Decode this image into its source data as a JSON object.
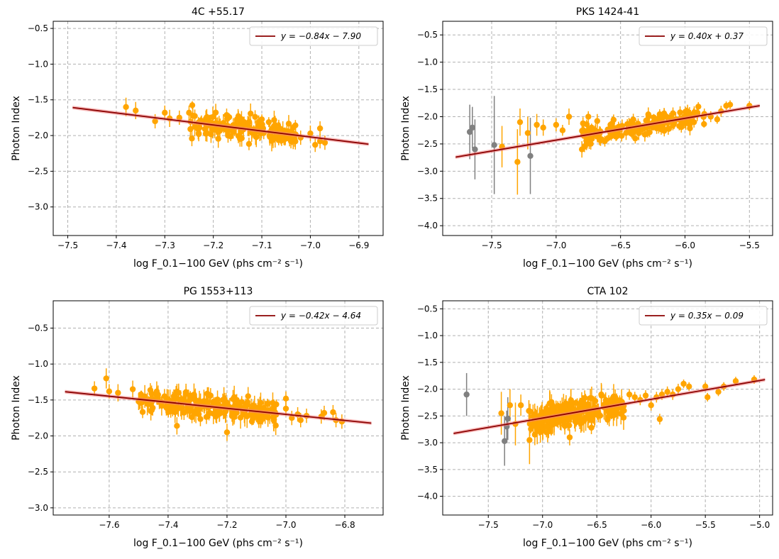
{
  "chart_data": [
    {
      "type": "scatter",
      "title": "4C +55.17",
      "xlabel": "log F_0.1−100 GeV (phs cm⁻² s⁻¹)",
      "ylabel": "Photon Index",
      "xlim": [
        -7.53,
        -6.85
      ],
      "ylim": [
        -3.4,
        -0.4
      ],
      "xticks": [
        "−7.5",
        "−7.4",
        "−7.3",
        "−7.2",
        "−7.1",
        "−7.0",
        "−6.9"
      ],
      "xtick_values": [
        -7.5,
        -7.4,
        -7.3,
        -7.2,
        -7.1,
        -7.0,
        -6.9
      ],
      "yticks": [
        "−3.0",
        "−2.5",
        "−2.0",
        "−1.5",
        "−1.0",
        "−0.5"
      ],
      "ytick_values": [
        -3.0,
        -2.5,
        -2.0,
        -1.5,
        -1.0,
        -0.5
      ],
      "grid": true,
      "legend": {
        "position": "top-right",
        "label": "y = −0.84x − 7.90"
      },
      "fit": {
        "slope": -0.84,
        "intercept": -7.9,
        "x_range": [
          -7.49,
          -6.88
        ]
      },
      "cloud": {
        "x_range": [
          -7.26,
          -7.03
        ],
        "count": 150,
        "band": 0.12,
        "err": [
          0.05,
          0.15
        ],
        "seed": 11
      },
      "series": [
        {
          "name": "data",
          "color": "#FFA500",
          "points": [
            [
              -7.38,
              -1.6,
              0.13
            ],
            [
              -7.36,
              -1.65,
              0.12
            ],
            [
              -7.32,
              -1.8,
              0.1
            ],
            [
              -7.3,
              -1.68,
              0.1
            ],
            [
              -7.29,
              -1.76,
              0.12
            ],
            [
              -7.27,
              -1.75,
              0.1
            ],
            [
              -7.25,
              -1.68,
              0.1
            ],
            [
              -7.23,
              -1.98,
              0.1
            ],
            [
              -7.02,
              -2.03,
              0.1
            ],
            [
              -7.0,
              -1.97,
              0.11
            ],
            [
              -6.98,
              -2.08,
              0.1
            ],
            [
              -6.98,
              -1.9,
              0.1
            ],
            [
              -6.97,
              -2.1,
              0.1
            ],
            [
              -6.99,
              -2.13,
              0.1
            ],
            [
              -7.04,
              -2.08,
              0.1
            ]
          ]
        }
      ]
    },
    {
      "type": "scatter",
      "title": "PKS 1424-41",
      "xlabel": "log F_0.1−100 GeV (phs cm⁻² s⁻¹)",
      "ylabel": "Photon Index",
      "xlim": [
        -7.88,
        -5.32
      ],
      "ylim": [
        -4.18,
        -0.25
      ],
      "xticks": [
        "−7.5",
        "−7.0",
        "−6.5",
        "−6.0",
        "−5.5"
      ],
      "xtick_values": [
        -7.5,
        -7.0,
        -6.5,
        -6.0,
        -5.5
      ],
      "yticks": [
        "−4.0",
        "−3.5",
        "−3.0",
        "−2.5",
        "−2.0",
        "−1.5",
        "−1.0",
        "−0.5"
      ],
      "ytick_values": [
        -4.0,
        -3.5,
        -3.0,
        -2.5,
        -2.0,
        -1.5,
        -1.0,
        -0.5
      ],
      "grid": true,
      "legend": {
        "position": "top-right",
        "label": "y = 0.40x + 0.37"
      },
      "fit": {
        "slope": 0.4,
        "intercept": 0.37,
        "x_range": [
          -7.78,
          -5.42
        ]
      },
      "cloud": {
        "x_range": [
          -6.8,
          -5.85
        ],
        "count": 170,
        "band": 0.14,
        "err": [
          0.05,
          0.13
        ],
        "seed": 23
      },
      "series": [
        {
          "name": "data",
          "color": "#FFA500",
          "points": [
            [
              -7.42,
              -2.55,
              0.38
            ],
            [
              -7.3,
              -2.83,
              0.6
            ],
            [
              -7.28,
              -2.1,
              0.25
            ],
            [
              -7.22,
              -2.3,
              0.3
            ],
            [
              -7.15,
              -2.15,
              0.2
            ],
            [
              -7.1,
              -2.2,
              0.15
            ],
            [
              -7.0,
              -2.15,
              0.12
            ],
            [
              -6.95,
              -2.25,
              0.1
            ],
            [
              -6.9,
              -2.0,
              0.15
            ],
            [
              -6.8,
              -2.6,
              0.15
            ],
            [
              -6.78,
              -2.55,
              0.1
            ],
            [
              -6.75,
              -2.0,
              0.1
            ],
            [
              -6.72,
              -2.3,
              0.1
            ],
            [
              -5.98,
              -2.05,
              0.1
            ],
            [
              -5.93,
              -2.1,
              0.1
            ],
            [
              -5.85,
              -1.95,
              0.1
            ],
            [
              -5.8,
              -2.0,
              0.1
            ],
            [
              -5.75,
              -2.05,
              0.08
            ],
            [
              -5.72,
              -1.9,
              0.1
            ],
            [
              -5.68,
              -1.8,
              0.08
            ],
            [
              -5.65,
              -1.78,
              0.08
            ],
            [
              -5.5,
              -1.8,
              0.08
            ]
          ]
        },
        {
          "name": "low",
          "color": "#808080",
          "points": [
            [
              -7.67,
              -2.28,
              0.5
            ],
            [
              -7.65,
              -2.2,
              0.38
            ],
            [
              -7.63,
              -2.6,
              0.55
            ],
            [
              -7.48,
              -2.52,
              0.9
            ],
            [
              -7.2,
              -2.72,
              0.7
            ]
          ]
        }
      ]
    },
    {
      "type": "scatter",
      "title": "PG 1553+113",
      "xlabel": "log F_0.1−100 GeV (phs cm⁻² s⁻¹)",
      "ylabel": "Photon Index",
      "xlim": [
        -7.79,
        -6.67
      ],
      "ylim": [
        -3.1,
        -0.12
      ],
      "xticks": [
        "−7.6",
        "−7.4",
        "−7.2",
        "−7.0",
        "−6.8"
      ],
      "xtick_values": [
        -7.6,
        -7.4,
        -7.2,
        -7.0,
        -6.8
      ],
      "yticks": [
        "−3.0",
        "−2.5",
        "−2.0",
        "−1.5",
        "−1.0",
        "−0.5"
      ],
      "ytick_values": [
        -3.0,
        -2.5,
        -2.0,
        -1.5,
        -1.0,
        -0.5
      ],
      "grid": true,
      "legend": {
        "position": "top-right",
        "label": "y = −0.42x − 4.64"
      },
      "fit": {
        "slope": -0.42,
        "intercept": -4.64,
        "x_range": [
          -7.75,
          -6.71
        ]
      },
      "cloud": {
        "x_range": [
          -7.5,
          -7.03
        ],
        "count": 220,
        "band": 0.11,
        "err": [
          0.05,
          0.17
        ],
        "seed": 37
      },
      "series": [
        {
          "name": "data",
          "color": "#FFA500",
          "points": [
            [
              -7.65,
              -1.34,
              0.1
            ],
            [
              -7.61,
              -1.2,
              0.14
            ],
            [
              -7.6,
              -1.38,
              0.1
            ],
            [
              -7.57,
              -1.4,
              0.12
            ],
            [
              -7.52,
              -1.35,
              0.12
            ],
            [
              -7.5,
              -1.52,
              0.12
            ],
            [
              -7.37,
              -1.86,
              0.12
            ],
            [
              -7.2,
              -1.95,
              0.12
            ],
            [
              -7.0,
              -1.48,
              0.1
            ],
            [
              -7.0,
              -1.62,
              0.1
            ],
            [
              -6.98,
              -1.75,
              0.1
            ],
            [
              -6.96,
              -1.7,
              0.1
            ],
            [
              -6.95,
              -1.78,
              0.1
            ],
            [
              -6.93,
              -1.72,
              0.1
            ],
            [
              -6.88,
              -1.73,
              0.1
            ],
            [
              -6.87,
              -1.68,
              0.1
            ],
            [
              -6.84,
              -1.67,
              0.1
            ],
            [
              -6.83,
              -1.78,
              0.1
            ],
            [
              -6.81,
              -1.8,
              0.1
            ]
          ]
        }
      ]
    },
    {
      "type": "scatter",
      "title": "CTA 102",
      "xlabel": "log F_0.1−100 GeV (phs cm⁻² s⁻¹)",
      "ylabel": "Photon Index",
      "xlim": [
        -7.92,
        -4.88
      ],
      "ylim": [
        -4.35,
        -0.35
      ],
      "xticks": [
        "−7.5",
        "−7.0",
        "−6.5",
        "−6.0",
        "−5.5",
        "−5.0"
      ],
      "xtick_values": [
        -7.5,
        -7.0,
        -6.5,
        -6.0,
        -5.5,
        -5.0
      ],
      "yticks": [
        "−4.0",
        "−3.5",
        "−3.0",
        "−2.5",
        "−2.0",
        "−1.5",
        "−1.0",
        "−0.5"
      ],
      "ytick_values": [
        -4.0,
        -3.5,
        -3.0,
        -2.5,
        -2.0,
        -1.5,
        -1.0,
        -0.5
      ],
      "grid": true,
      "legend": {
        "position": "top-right",
        "label": "y = 0.35x − 0.09"
      },
      "fit": {
        "slope": 0.35,
        "intercept": -0.09,
        "x_range": [
          -7.82,
          -4.95
        ]
      },
      "cloud": {
        "x_range": [
          -7.15,
          -6.25
        ],
        "count": 220,
        "band": 0.17,
        "err": [
          0.06,
          0.25
        ],
        "seed": 53
      },
      "series": [
        {
          "name": "data",
          "color": "#FFA500",
          "points": [
            [
              -7.38,
              -2.45,
              0.4
            ],
            [
              -7.3,
              -2.3,
              0.3
            ],
            [
              -7.25,
              -2.65,
              0.4
            ],
            [
              -7.2,
              -2.3,
              0.2
            ],
            [
              -7.12,
              -2.95,
              0.45
            ],
            [
              -7.02,
              -2.8,
              0.2
            ],
            [
              -6.75,
              -2.9,
              0.15
            ],
            [
              -6.55,
              -2.72,
              0.12
            ],
            [
              -6.2,
              -2.1,
              0.1
            ],
            [
              -6.15,
              -2.15,
              0.1
            ],
            [
              -6.1,
              -2.2,
              0.1
            ],
            [
              -6.05,
              -2.12,
              0.1
            ],
            [
              -6.0,
              -2.3,
              0.1
            ],
            [
              -5.95,
              -2.15,
              0.1
            ],
            [
              -5.92,
              -2.56,
              0.1
            ],
            [
              -5.9,
              -2.1,
              0.1
            ],
            [
              -5.85,
              -2.05,
              0.1
            ],
            [
              -5.8,
              -2.1,
              0.1
            ],
            [
              -5.75,
              -2.0,
              0.1
            ],
            [
              -5.7,
              -1.9,
              0.08
            ],
            [
              -5.65,
              -1.95,
              0.08
            ],
            [
              -5.5,
              -1.95,
              0.08
            ],
            [
              -5.48,
              -2.15,
              0.08
            ],
            [
              -5.38,
              -2.05,
              0.08
            ],
            [
              -5.33,
              -1.95,
              0.08
            ],
            [
              -5.22,
              -1.85,
              0.08
            ],
            [
              -5.05,
              -1.82,
              0.08
            ]
          ]
        },
        {
          "name": "low",
          "color": "#808080",
          "points": [
            [
              -7.7,
              -2.1,
              0.4
            ],
            [
              -7.35,
              -2.97,
              0.46
            ],
            [
              -7.33,
              -2.7,
              0.3
            ],
            [
              -7.32,
              -2.55,
              0.4
            ]
          ]
        }
      ]
    }
  ]
}
